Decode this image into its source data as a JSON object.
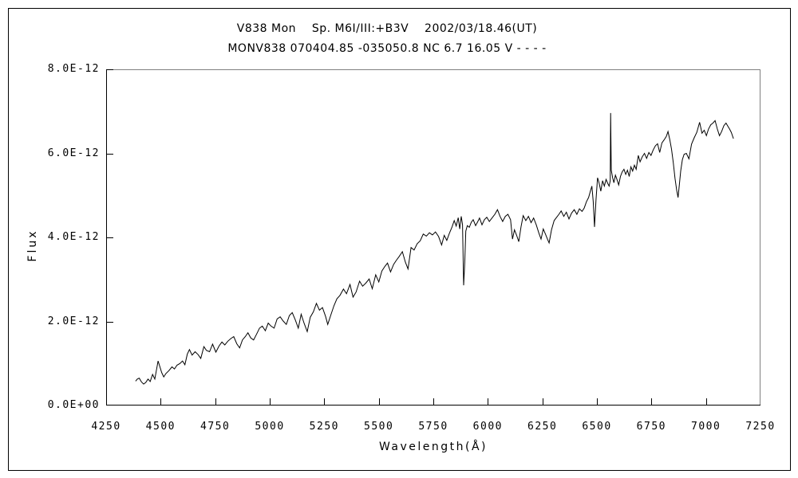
{
  "figure": {
    "background_color": "#ffffff",
    "outer_border_color": "#000000"
  },
  "chart_data": {
    "type": "line",
    "title": "V838 Mon    Sp. M6I/III:+B3V    2002/03/18.46(UT)",
    "subtitle": "MONV838 070404.85 -035050.8 NC 6.7 16.05 V - - - -",
    "xlabel": "Wavelength(Å)",
    "ylabel": "Flux",
    "xlim": [
      4250,
      7250
    ],
    "ylim": [
      0,
      8
    ],
    "y_value_multiplier": "1e-12",
    "grid": false,
    "legend": "none",
    "x_ticks": [
      4250,
      4500,
      4750,
      5000,
      5250,
      5500,
      5750,
      6000,
      6250,
      6500,
      6750,
      7000,
      7250
    ],
    "y_ticks": [
      {
        "value": 0,
        "label": "0.0E+00"
      },
      {
        "value": 2,
        "label": "2.0E-12"
      },
      {
        "value": 4,
        "label": "4.0E-12"
      },
      {
        "value": 6,
        "label": "6.0E-12"
      },
      {
        "value": 8,
        "label": "8.0E-12"
      }
    ],
    "axis_color": "#000000",
    "box_top_right_color": "#808080",
    "line_color": "#000000",
    "notable_features": [
      {
        "wavelength": 5890,
        "type": "absorption-dip",
        "depth": 2.86
      },
      {
        "wavelength": 6563,
        "type": "emission-spike",
        "peak": 6.96
      },
      {
        "wavelength": 6872,
        "type": "absorption-dip",
        "depth": 4.95
      }
    ],
    "series": [
      {
        "name": "spectrum",
        "points": [
          [
            4385,
            0.58
          ],
          [
            4393,
            0.63
          ],
          [
            4402,
            0.65
          ],
          [
            4412,
            0.56
          ],
          [
            4422,
            0.51
          ],
          [
            4432,
            0.55
          ],
          [
            4442,
            0.63
          ],
          [
            4452,
            0.57
          ],
          [
            4463,
            0.74
          ],
          [
            4473,
            0.63
          ],
          [
            4481,
            0.85
          ],
          [
            4488,
            1.06
          ],
          [
            4496,
            0.93
          ],
          [
            4505,
            0.78
          ],
          [
            4514,
            0.68
          ],
          [
            4524,
            0.76
          ],
          [
            4538,
            0.83
          ],
          [
            4552,
            0.92
          ],
          [
            4563,
            0.87
          ],
          [
            4575,
            0.96
          ],
          [
            4588,
            1.0
          ],
          [
            4600,
            1.06
          ],
          [
            4611,
            0.97
          ],
          [
            4622,
            1.22
          ],
          [
            4632,
            1.33
          ],
          [
            4644,
            1.2
          ],
          [
            4658,
            1.28
          ],
          [
            4672,
            1.21
          ],
          [
            4684,
            1.12
          ],
          [
            4698,
            1.4
          ],
          [
            4710,
            1.31
          ],
          [
            4724,
            1.28
          ],
          [
            4738,
            1.46
          ],
          [
            4753,
            1.27
          ],
          [
            4768,
            1.42
          ],
          [
            4781,
            1.51
          ],
          [
            4794,
            1.44
          ],
          [
            4808,
            1.53
          ],
          [
            4821,
            1.59
          ],
          [
            4835,
            1.64
          ],
          [
            4849,
            1.47
          ],
          [
            4862,
            1.37
          ],
          [
            4875,
            1.56
          ],
          [
            4888,
            1.64
          ],
          [
            4900,
            1.73
          ],
          [
            4913,
            1.61
          ],
          [
            4926,
            1.56
          ],
          [
            4940,
            1.7
          ],
          [
            4953,
            1.84
          ],
          [
            4966,
            1.89
          ],
          [
            4980,
            1.78
          ],
          [
            4993,
            1.96
          ],
          [
            5006,
            1.89
          ],
          [
            5020,
            1.84
          ],
          [
            5034,
            2.06
          ],
          [
            5048,
            2.11
          ],
          [
            5062,
            2.01
          ],
          [
            5076,
            1.93
          ],
          [
            5090,
            2.14
          ],
          [
            5103,
            2.21
          ],
          [
            5117,
            2.04
          ],
          [
            5131,
            1.84
          ],
          [
            5144,
            2.17
          ],
          [
            5158,
            1.95
          ],
          [
            5172,
            1.76
          ],
          [
            5186,
            2.1
          ],
          [
            5200,
            2.23
          ],
          [
            5214,
            2.43
          ],
          [
            5228,
            2.27
          ],
          [
            5242,
            2.33
          ],
          [
            5256,
            2.12
          ],
          [
            5266,
            1.93
          ],
          [
            5280,
            2.15
          ],
          [
            5294,
            2.37
          ],
          [
            5308,
            2.54
          ],
          [
            5322,
            2.62
          ],
          [
            5338,
            2.77
          ],
          [
            5352,
            2.66
          ],
          [
            5368,
            2.88
          ],
          [
            5382,
            2.58
          ],
          [
            5396,
            2.7
          ],
          [
            5412,
            2.96
          ],
          [
            5426,
            2.84
          ],
          [
            5440,
            2.91
          ],
          [
            5456,
            3.01
          ],
          [
            5470,
            2.78
          ],
          [
            5486,
            3.11
          ],
          [
            5500,
            2.94
          ],
          [
            5514,
            3.2
          ],
          [
            5528,
            3.31
          ],
          [
            5540,
            3.39
          ],
          [
            5554,
            3.18
          ],
          [
            5568,
            3.36
          ],
          [
            5580,
            3.45
          ],
          [
            5594,
            3.55
          ],
          [
            5608,
            3.66
          ],
          [
            5622,
            3.41
          ],
          [
            5634,
            3.25
          ],
          [
            5648,
            3.76
          ],
          [
            5662,
            3.7
          ],
          [
            5676,
            3.85
          ],
          [
            5690,
            3.92
          ],
          [
            5704,
            4.08
          ],
          [
            5718,
            4.03
          ],
          [
            5732,
            4.11
          ],
          [
            5746,
            4.06
          ],
          [
            5760,
            4.13
          ],
          [
            5774,
            4.02
          ],
          [
            5788,
            3.82
          ],
          [
            5800,
            4.05
          ],
          [
            5812,
            3.93
          ],
          [
            5824,
            4.1
          ],
          [
            5836,
            4.25
          ],
          [
            5846,
            4.4
          ],
          [
            5855,
            4.27
          ],
          [
            5864,
            4.47
          ],
          [
            5871,
            4.2
          ],
          [
            5878,
            4.5
          ],
          [
            5884,
            4.3
          ],
          [
            5889,
            2.86
          ],
          [
            5894,
            3.4
          ],
          [
            5899,
            4.15
          ],
          [
            5906,
            4.28
          ],
          [
            5915,
            4.24
          ],
          [
            5924,
            4.36
          ],
          [
            5933,
            4.42
          ],
          [
            5944,
            4.28
          ],
          [
            5954,
            4.38
          ],
          [
            5962,
            4.46
          ],
          [
            5973,
            4.3
          ],
          [
            5984,
            4.42
          ],
          [
            5995,
            4.48
          ],
          [
            6007,
            4.38
          ],
          [
            6019,
            4.46
          ],
          [
            6032,
            4.55
          ],
          [
            6044,
            4.66
          ],
          [
            6056,
            4.5
          ],
          [
            6068,
            4.38
          ],
          [
            6080,
            4.5
          ],
          [
            6092,
            4.55
          ],
          [
            6104,
            4.42
          ],
          [
            6113,
            3.96
          ],
          [
            6122,
            4.18
          ],
          [
            6132,
            4.05
          ],
          [
            6142,
            3.9
          ],
          [
            6152,
            4.25
          ],
          [
            6162,
            4.52
          ],
          [
            6174,
            4.4
          ],
          [
            6186,
            4.5
          ],
          [
            6198,
            4.35
          ],
          [
            6210,
            4.46
          ],
          [
            6222,
            4.3
          ],
          [
            6234,
            4.1
          ],
          [
            6244,
            3.96
          ],
          [
            6254,
            4.2
          ],
          [
            6264,
            4.08
          ],
          [
            6274,
            3.95
          ],
          [
            6281,
            3.87
          ],
          [
            6292,
            4.18
          ],
          [
            6304,
            4.4
          ],
          [
            6314,
            4.47
          ],
          [
            6326,
            4.55
          ],
          [
            6336,
            4.63
          ],
          [
            6348,
            4.5
          ],
          [
            6360,
            4.6
          ],
          [
            6372,
            4.44
          ],
          [
            6384,
            4.58
          ],
          [
            6396,
            4.66
          ],
          [
            6408,
            4.55
          ],
          [
            6420,
            4.68
          ],
          [
            6432,
            4.62
          ],
          [
            6442,
            4.7
          ],
          [
            6452,
            4.85
          ],
          [
            6462,
            4.95
          ],
          [
            6470,
            5.1
          ],
          [
            6477,
            5.22
          ],
          [
            6483,
            4.85
          ],
          [
            6489,
            4.25
          ],
          [
            6496,
            4.9
          ],
          [
            6503,
            5.42
          ],
          [
            6510,
            5.3
          ],
          [
            6518,
            5.1
          ],
          [
            6526,
            5.35
          ],
          [
            6534,
            5.22
          ],
          [
            6542,
            5.38
          ],
          [
            6550,
            5.28
          ],
          [
            6556,
            5.22
          ],
          [
            6561,
            5.35
          ],
          [
            6563,
            6.96
          ],
          [
            6566,
            5.6
          ],
          [
            6572,
            5.42
          ],
          [
            6578,
            5.3
          ],
          [
            6585,
            5.48
          ],
          [
            6592,
            5.38
          ],
          [
            6600,
            5.25
          ],
          [
            6608,
            5.45
          ],
          [
            6616,
            5.56
          ],
          [
            6624,
            5.62
          ],
          [
            6632,
            5.5
          ],
          [
            6640,
            5.6
          ],
          [
            6648,
            5.45
          ],
          [
            6656,
            5.68
          ],
          [
            6664,
            5.58
          ],
          [
            6672,
            5.72
          ],
          [
            6680,
            5.62
          ],
          [
            6690,
            5.95
          ],
          [
            6698,
            5.8
          ],
          [
            6708,
            5.92
          ],
          [
            6718,
            6.0
          ],
          [
            6728,
            5.88
          ],
          [
            6738,
            6.02
          ],
          [
            6748,
            5.95
          ],
          [
            6758,
            6.08
          ],
          [
            6768,
            6.18
          ],
          [
            6778,
            6.23
          ],
          [
            6788,
            6.02
          ],
          [
            6798,
            6.25
          ],
          [
            6808,
            6.32
          ],
          [
            6818,
            6.4
          ],
          [
            6826,
            6.52
          ],
          [
            6834,
            6.33
          ],
          [
            6842,
            6.1
          ],
          [
            6850,
            5.78
          ],
          [
            6858,
            5.4
          ],
          [
            6866,
            5.12
          ],
          [
            6872,
            4.95
          ],
          [
            6878,
            5.25
          ],
          [
            6884,
            5.58
          ],
          [
            6892,
            5.85
          ],
          [
            6900,
            5.98
          ],
          [
            6910,
            6.0
          ],
          [
            6922,
            5.87
          ],
          [
            6934,
            6.22
          ],
          [
            6946,
            6.37
          ],
          [
            6958,
            6.5
          ],
          [
            6971,
            6.74
          ],
          [
            6982,
            6.48
          ],
          [
            6992,
            6.55
          ],
          [
            7002,
            6.42
          ],
          [
            7012,
            6.58
          ],
          [
            7022,
            6.68
          ],
          [
            7032,
            6.72
          ],
          [
            7042,
            6.78
          ],
          [
            7052,
            6.58
          ],
          [
            7062,
            6.42
          ],
          [
            7072,
            6.52
          ],
          [
            7082,
            6.66
          ],
          [
            7092,
            6.72
          ],
          [
            7100,
            6.65
          ],
          [
            7108,
            6.58
          ],
          [
            7116,
            6.5
          ],
          [
            7126,
            6.35
          ]
        ]
      }
    ]
  }
}
